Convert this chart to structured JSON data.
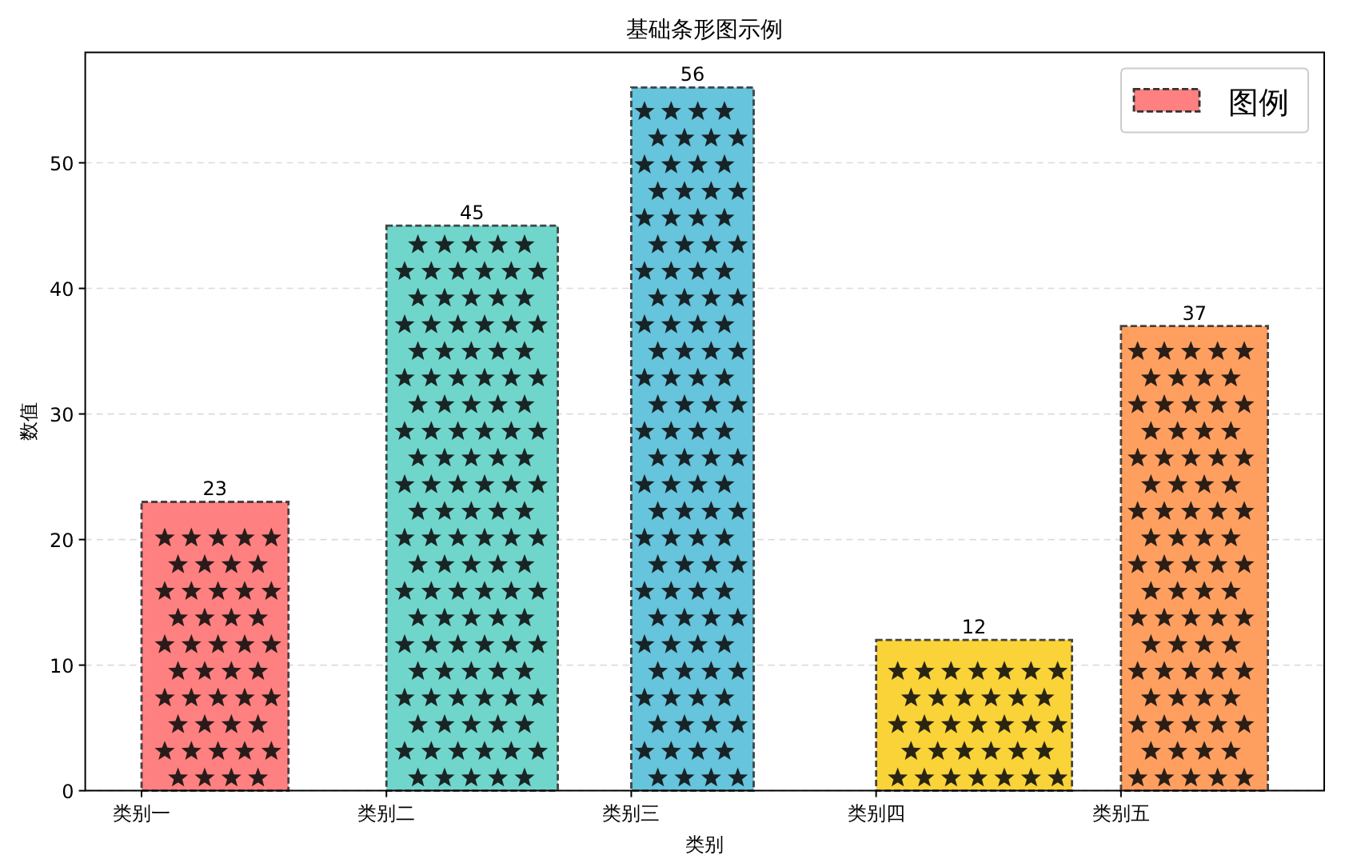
{
  "chart_data": {
    "type": "bar",
    "title": "基础条形图示例",
    "xlabel": "类别",
    "ylabel": "数值",
    "categories": [
      "类别一",
      "类别二",
      "类别三",
      "类别四",
      "类别五"
    ],
    "series": [
      {
        "name": "图例",
        "colors": [
          "#ff8080",
          "#70d6cc",
          "#66c4dc",
          "#fad338",
          "#ff9f5f"
        ],
        "values": [
          23,
          45,
          56,
          12,
          37
        ]
      }
    ],
    "ylim": [
      0,
      58.8
    ],
    "yticks": [
      0,
      10,
      20,
      30,
      40,
      50
    ],
    "grid": "y",
    "legend": "top right",
    "data_labels": true
  }
}
